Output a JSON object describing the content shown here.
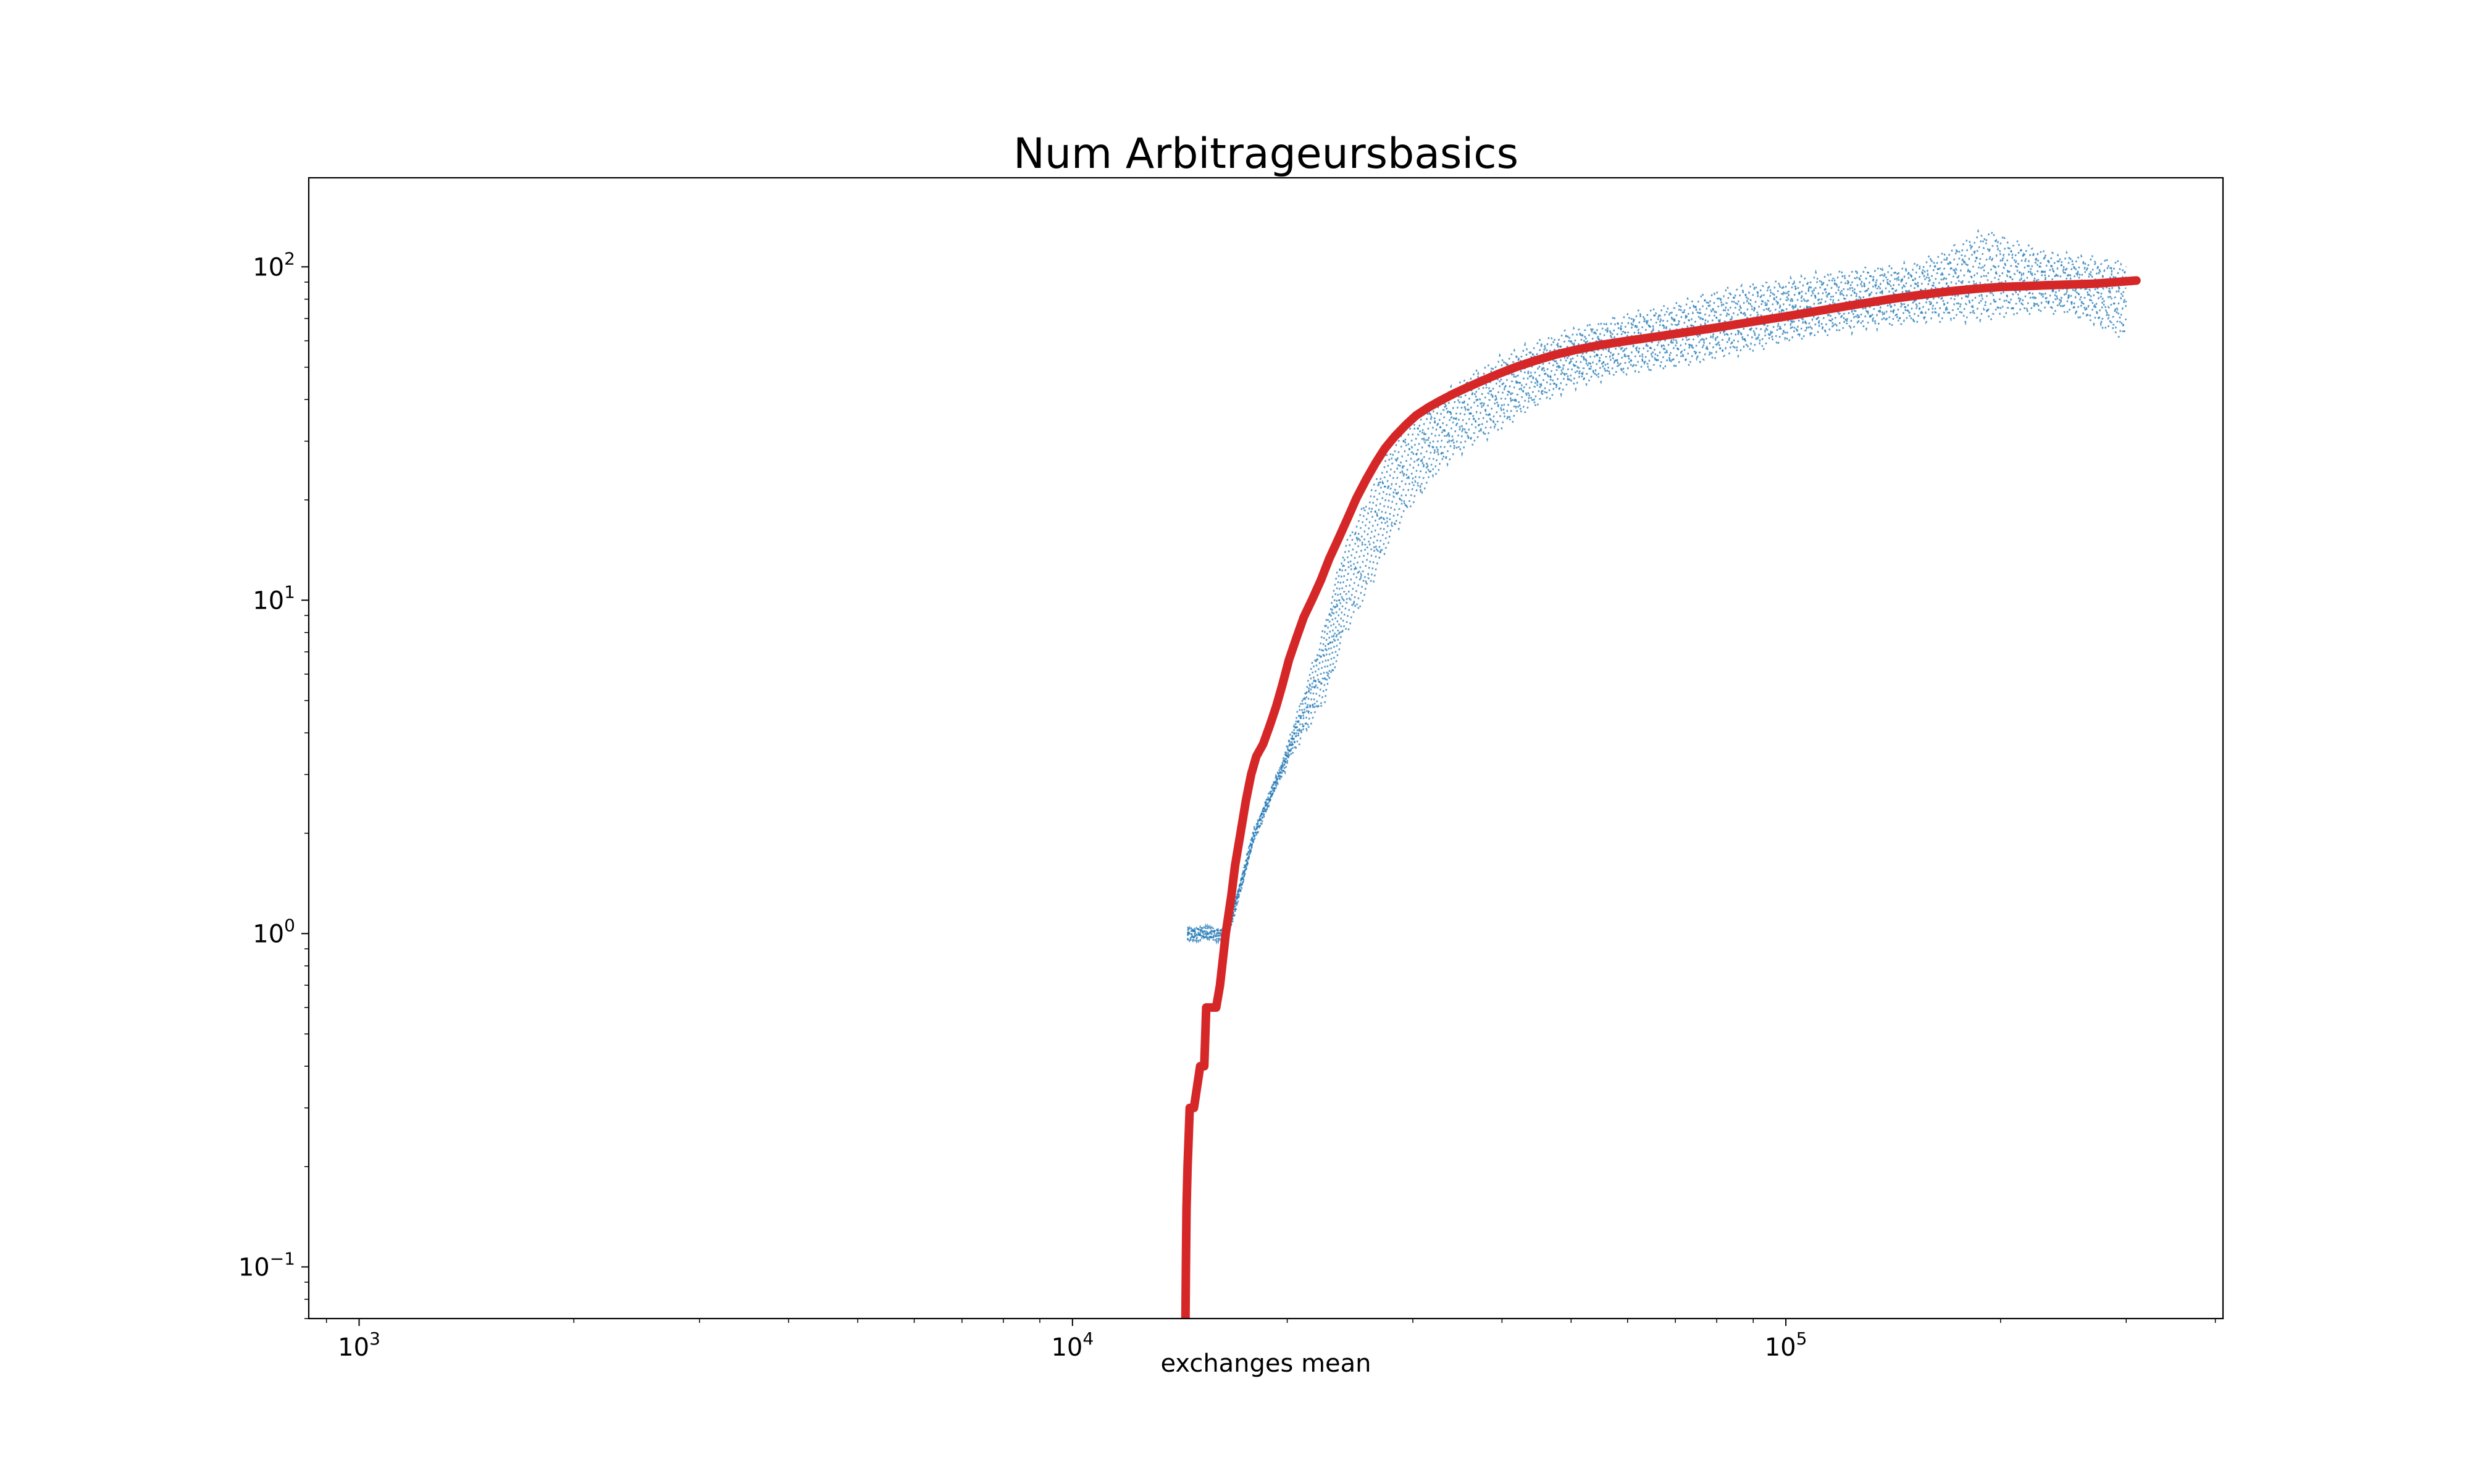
{
  "chart_data": {
    "type": "scatter",
    "title": "Num Arbitrageursbasics",
    "xlabel": "exchanges mean",
    "ylabel": "",
    "xscale": "log",
    "yscale": "log",
    "xlim": [
      850,
      410000
    ],
    "ylim": [
      0.07,
      185
    ],
    "grid": false,
    "legend": "none",
    "x_ticks": [
      {
        "value": 1000,
        "base": "10",
        "exp": "3"
      },
      {
        "value": 10000,
        "base": "10",
        "exp": "4"
      },
      {
        "value": 100000,
        "base": "10",
        "exp": "5"
      }
    ],
    "y_ticks": [
      {
        "value": 0.1,
        "base": "10",
        "exp": "−1"
      },
      {
        "value": 1,
        "base": "10",
        "exp": "0"
      },
      {
        "value": 10,
        "base": "10",
        "exp": "1"
      },
      {
        "value": 100,
        "base": "10",
        "exp": "2"
      }
    ],
    "colors": {
      "runs": "#1f77b4",
      "mean": "#d62728",
      "axes": "#000000"
    },
    "series": [
      {
        "kind": "individual-runs",
        "style": "dots",
        "count": 10,
        "x": [
          14500,
          16500,
          18000,
          19500,
          21000,
          22500,
          24000,
          26000,
          28000,
          30000,
          33000,
          36000,
          40000,
          45000,
          50000,
          56000,
          62000,
          70000,
          80000,
          90000,
          100000,
          115000,
          130000,
          150000,
          170000,
          190000,
          210000,
          230000,
          250000,
          270000,
          300000
        ],
        "low": [
          1,
          1,
          2,
          3,
          4,
          5,
          8,
          11,
          16,
          20,
          26,
          30,
          34,
          40,
          45,
          48,
          50,
          52,
          55,
          58,
          62,
          65,
          68,
          70,
          72,
          72,
          74,
          76,
          75,
          70,
          62
        ],
        "high": [
          1,
          1,
          2,
          3,
          5,
          8,
          14,
          20,
          28,
          33,
          40,
          46,
          52,
          58,
          63,
          67,
          71,
          75,
          82,
          86,
          88,
          93,
          96,
          98,
          110,
          125,
          115,
          108,
          105,
          103,
          100
        ]
      },
      {
        "kind": "mean",
        "style": "line",
        "x": [
          14400,
          14420,
          14450,
          14500,
          14600,
          14800,
          15100,
          15300,
          15400,
          15600,
          15900,
          16100,
          16400,
          16700,
          16900,
          17200,
          17500,
          17800,
          18100,
          18500,
          18900,
          19300,
          19700,
          20100,
          20600,
          21100,
          21700,
          22300,
          22900,
          23600,
          24300,
          25000,
          25800,
          26600,
          27400,
          28300,
          29300,
          30300,
          31500,
          32800,
          34200,
          35700,
          37500,
          39500,
          41800,
          44500,
          47500,
          51000,
          55000,
          60000,
          66000,
          73000,
          81000,
          90000,
          100000,
          112000,
          125000,
          140000,
          155000,
          170000,
          185000,
          200000,
          215000,
          230000,
          250000,
          270000,
          290000,
          310000
        ],
        "y": [
          0.07,
          0.1,
          0.15,
          0.2,
          0.3,
          0.3,
          0.4,
          0.4,
          0.6,
          0.6,
          0.6,
          0.7,
          1.0,
          1.3,
          1.6,
          2.0,
          2.5,
          3.0,
          3.4,
          3.7,
          4.2,
          4.8,
          5.6,
          6.6,
          7.7,
          8.9,
          10.1,
          11.5,
          13.3,
          15.3,
          17.6,
          20.2,
          23.0,
          25.8,
          28.5,
          31.0,
          33.5,
          35.8,
          37.8,
          39.7,
          41.6,
          43.4,
          45.5,
          47.7,
          50.0,
          52.3,
          54.5,
          56.5,
          58.3,
          60.0,
          61.8,
          63.8,
          66.0,
          68.5,
          71.0,
          74.0,
          77.0,
          80.0,
          82.5,
          84.5,
          86.0,
          87.0,
          87.5,
          88.0,
          88.5,
          89.0,
          90.0,
          91.0
        ]
      }
    ]
  }
}
